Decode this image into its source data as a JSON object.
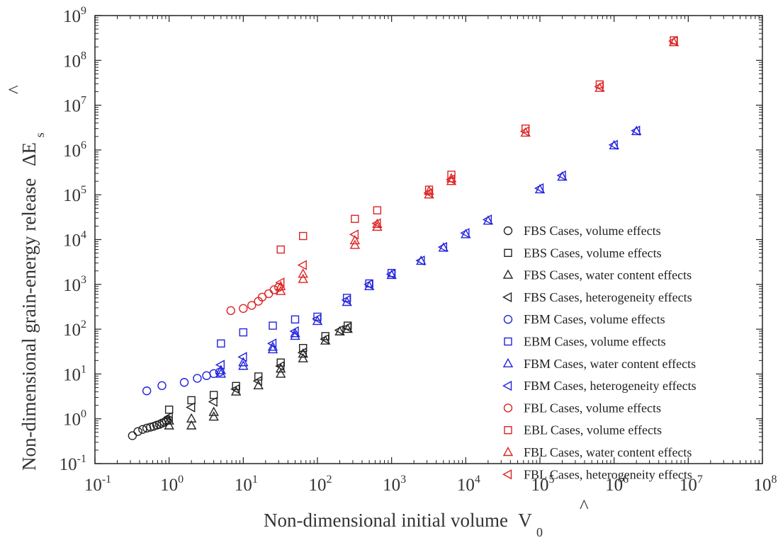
{
  "chart_data": {
    "type": "scatter",
    "title": "",
    "xlabel": "Non-dimensional initial volume",
    "xlabel_symbol": "V",
    "xlabel_symbol_sub": "0",
    "ylabel": "Non-dimensional grain-energy release",
    "ylabel_symbol": "ΔE",
    "ylabel_symbol_sub": "s",
    "xscale": "log",
    "yscale": "log",
    "xlim": [
      0.1,
      100000000
    ],
    "ylim": [
      0.1,
      1000000000
    ],
    "x_ticks": [
      {
        "base": "10",
        "exp": "-1",
        "value": 0.1
      },
      {
        "base": "10",
        "exp": "0",
        "value": 1
      },
      {
        "base": "10",
        "exp": "1",
        "value": 10
      },
      {
        "base": "10",
        "exp": "2",
        "value": 100
      },
      {
        "base": "10",
        "exp": "3",
        "value": 1000
      },
      {
        "base": "10",
        "exp": "4",
        "value": 10000
      },
      {
        "base": "10",
        "exp": "5",
        "value": 100000
      },
      {
        "base": "10",
        "exp": "6",
        "value": 1000000
      },
      {
        "base": "10",
        "exp": "7",
        "value": 10000000
      },
      {
        "base": "10",
        "exp": "8",
        "value": 100000000
      }
    ],
    "y_ticks": [
      {
        "base": "10",
        "exp": "-1",
        "value": 0.1
      },
      {
        "base": "10",
        "exp": "0",
        "value": 1
      },
      {
        "base": "10",
        "exp": "1",
        "value": 10
      },
      {
        "base": "10",
        "exp": "2",
        "value": 100
      },
      {
        "base": "10",
        "exp": "3",
        "value": 1000
      },
      {
        "base": "10",
        "exp": "4",
        "value": 10000
      },
      {
        "base": "10",
        "exp": "5",
        "value": 100000
      },
      {
        "base": "10",
        "exp": "6",
        "value": 1000000
      },
      {
        "base": "10",
        "exp": "7",
        "value": 10000000
      },
      {
        "base": "10",
        "exp": "8",
        "value": 100000000
      },
      {
        "base": "10",
        "exp": "9",
        "value": 1000000000
      }
    ],
    "grid": false,
    "legend_position": "right",
    "series": [
      {
        "name": "FBS Cases, volume effects",
        "marker": "circle",
        "color": "#222222",
        "points": [
          [
            0.32,
            0.42
          ],
          [
            0.38,
            0.52
          ],
          [
            0.44,
            0.58
          ],
          [
            0.5,
            0.62
          ],
          [
            0.56,
            0.65
          ],
          [
            0.62,
            0.68
          ],
          [
            0.68,
            0.72
          ],
          [
            0.74,
            0.75
          ],
          [
            0.8,
            0.8
          ],
          [
            0.86,
            0.84
          ],
          [
            0.92,
            0.9
          ],
          [
            0.98,
            0.95
          ]
        ]
      },
      {
        "name": "EBS Cases, volume effects",
        "marker": "square",
        "color": "#222222",
        "points": [
          [
            1,
            1.6
          ],
          [
            2,
            2.6
          ],
          [
            4,
            3.4
          ],
          [
            8,
            5.4
          ],
          [
            16,
            8.8
          ],
          [
            32,
            18
          ],
          [
            64,
            38
          ],
          [
            128,
            70
          ],
          [
            256,
            120
          ]
        ]
      },
      {
        "name": "FBS Cases, water content effects",
        "marker": "triangle-up",
        "color": "#222222",
        "points": [
          [
            1,
            0.7
          ],
          [
            1,
            0.9
          ],
          [
            2,
            0.7
          ],
          [
            2,
            1.0
          ],
          [
            4,
            1.1
          ],
          [
            4,
            1.4
          ],
          [
            8,
            4.0
          ],
          [
            16,
            5.5
          ],
          [
            32,
            10
          ],
          [
            32,
            13
          ],
          [
            64,
            22
          ],
          [
            64,
            28
          ],
          [
            128,
            55
          ],
          [
            200,
            88
          ],
          [
            256,
            100
          ]
        ]
      },
      {
        "name": "FBS Cases, heterogeneity effects",
        "marker": "triangle-left",
        "color": "#222222",
        "points": [
          [
            1,
            1.1
          ],
          [
            2,
            1.8
          ],
          [
            4,
            2.4
          ],
          [
            8,
            4.6
          ],
          [
            16,
            7.0
          ],
          [
            32,
            15
          ],
          [
            64,
            30
          ],
          [
            128,
            60
          ],
          [
            200,
            95
          ],
          [
            256,
            110
          ]
        ]
      },
      {
        "name": "FBM Cases, volume effects",
        "marker": "circle",
        "color": "#2222dd",
        "points": [
          [
            0.5,
            4.2
          ],
          [
            0.8,
            5.5
          ],
          [
            1.6,
            6.5
          ],
          [
            2.4,
            8
          ],
          [
            3.2,
            9.2
          ],
          [
            4.0,
            10.2
          ],
          [
            4.8,
            11
          ]
        ]
      },
      {
        "name": "EBM Cases, volume effects",
        "marker": "square",
        "color": "#2222dd",
        "points": [
          [
            5,
            48
          ],
          [
            10,
            85
          ],
          [
            25,
            120
          ],
          [
            50,
            165
          ],
          [
            100,
            190
          ],
          [
            250,
            500
          ],
          [
            500,
            1050
          ],
          [
            1000,
            1800
          ]
        ]
      },
      {
        "name": "FBM Cases, water content effects",
        "marker": "triangle-up",
        "color": "#2222dd",
        "points": [
          [
            5,
            10
          ],
          [
            5,
            12
          ],
          [
            10,
            15
          ],
          [
            10,
            18
          ],
          [
            25,
            35
          ],
          [
            25,
            40
          ],
          [
            50,
            70
          ],
          [
            50,
            80
          ],
          [
            100,
            150
          ],
          [
            250,
            400
          ],
          [
            500,
            900
          ],
          [
            1000,
            1600
          ],
          [
            2500,
            3300
          ],
          [
            5000,
            6500
          ],
          [
            10000,
            13000
          ],
          [
            20000,
            26000
          ],
          [
            100000,
            130000
          ],
          [
            200000,
            250000
          ],
          [
            1000000,
            1250000
          ],
          [
            2000000,
            2600000
          ]
        ]
      },
      {
        "name": "FBM Cases, heterogeneity effects",
        "marker": "triangle-left",
        "color": "#2222dd",
        "points": [
          [
            5,
            16
          ],
          [
            10,
            24
          ],
          [
            25,
            48
          ],
          [
            50,
            90
          ],
          [
            100,
            170
          ],
          [
            250,
            450
          ],
          [
            500,
            1000
          ],
          [
            1000,
            1700
          ],
          [
            2500,
            3400
          ],
          [
            5000,
            6800
          ],
          [
            10000,
            14000
          ],
          [
            20000,
            28000
          ],
          [
            100000,
            140000
          ],
          [
            200000,
            270000
          ],
          [
            1000000,
            1300000
          ],
          [
            2000000,
            2700000
          ]
        ]
      },
      {
        "name": "FBL Cases, volume effects",
        "marker": "circle",
        "color": "#dd2222",
        "points": [
          [
            6.8,
            260
          ],
          [
            10,
            290
          ],
          [
            13,
            340
          ],
          [
            16,
            420
          ],
          [
            18,
            520
          ],
          [
            22,
            620
          ],
          [
            26,
            760
          ],
          [
            30,
            860
          ]
        ]
      },
      {
        "name": "EBL Cases, volume effects",
        "marker": "square",
        "color": "#dd2222",
        "points": [
          [
            32,
            6000
          ],
          [
            64,
            12000
          ],
          [
            320,
            29000
          ],
          [
            640,
            45000
          ],
          [
            3200,
            130000
          ],
          [
            6400,
            280000
          ],
          [
            64000,
            3000000
          ],
          [
            640000,
            29000000
          ],
          [
            6400000,
            280000000
          ]
        ]
      },
      {
        "name": "FBL Cases, water content effects",
        "marker": "triangle-up",
        "color": "#dd2222",
        "points": [
          [
            32,
            700
          ],
          [
            32,
            900
          ],
          [
            64,
            1300
          ],
          [
            64,
            1700
          ],
          [
            320,
            7500
          ],
          [
            320,
            9500
          ],
          [
            640,
            19000
          ],
          [
            640,
            22000
          ],
          [
            3200,
            100000
          ],
          [
            3200,
            120000
          ],
          [
            6400,
            200000
          ],
          [
            6400,
            230000
          ],
          [
            64000,
            2400000
          ],
          [
            640000,
            24000000
          ],
          [
            6400000,
            250000000
          ]
        ]
      },
      {
        "name": "FBL Cases, heterogeneity effects",
        "marker": "triangle-left",
        "color": "#dd2222",
        "points": [
          [
            32,
            1100
          ],
          [
            64,
            2700
          ],
          [
            320,
            13000
          ],
          [
            640,
            23000
          ],
          [
            3200,
            110000
          ],
          [
            6400,
            220000
          ],
          [
            64000,
            2600000
          ],
          [
            640000,
            26000000
          ],
          [
            6400000,
            270000000
          ]
        ]
      }
    ]
  }
}
